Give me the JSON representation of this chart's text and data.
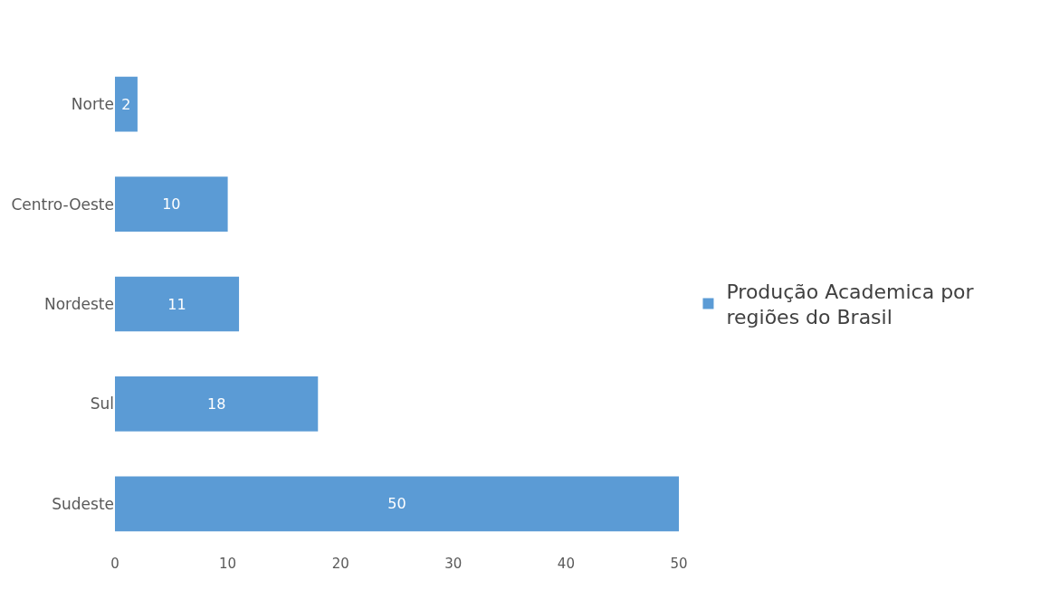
{
  "chart_data": {
    "type": "bar",
    "orientation": "horizontal",
    "categories": [
      "Norte",
      "Centro-Oeste",
      "Nordeste",
      "Sul",
      "Sudeste"
    ],
    "series": [
      {
        "name": "Produção Academica por regiões do Brasil",
        "color": "#5b9bd5",
        "values": [
          2,
          10,
          11,
          18,
          50
        ]
      }
    ],
    "xlim": [
      0,
      50
    ],
    "xticks": [
      0,
      10,
      20,
      30,
      40,
      50
    ],
    "data_labels": true,
    "grid": false,
    "legend": "right"
  }
}
